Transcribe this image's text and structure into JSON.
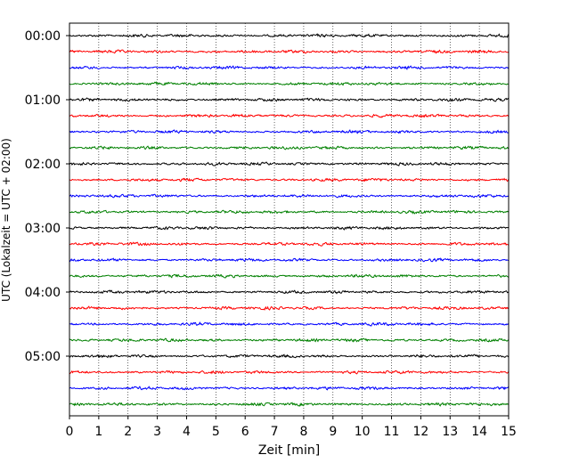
{
  "chart_data": {
    "type": "line",
    "title": "",
    "xlabel": "Zeit  [min]",
    "ylabel": "UTC (Lokalzeit = UTC + 02:00)",
    "xlim": [
      0,
      15
    ],
    "x_ticks": [
      "0",
      "1",
      "2",
      "3",
      "4",
      "5",
      "6",
      "7",
      "8",
      "9",
      "10",
      "11",
      "12",
      "13",
      "14",
      "15"
    ],
    "y_ticks": [
      "00:00",
      "01:00",
      "02:00",
      "03:00",
      "04:00",
      "05:00"
    ],
    "grid": "vertical dotted",
    "trace_colors": [
      "#000000",
      "#ff0000",
      "#0000ff",
      "#008000"
    ],
    "trace_interval_min": 15,
    "trace_start_times": [
      "00:00",
      "00:15",
      "00:30",
      "00:45",
      "01:00",
      "01:15",
      "01:30",
      "01:45",
      "02:00",
      "02:15",
      "02:30",
      "02:45",
      "03:00",
      "03:15",
      "03:30",
      "03:45",
      "04:00",
      "04:15",
      "04:30",
      "04:45",
      "05:00",
      "05:15",
      "05:30",
      "05:45"
    ]
  }
}
